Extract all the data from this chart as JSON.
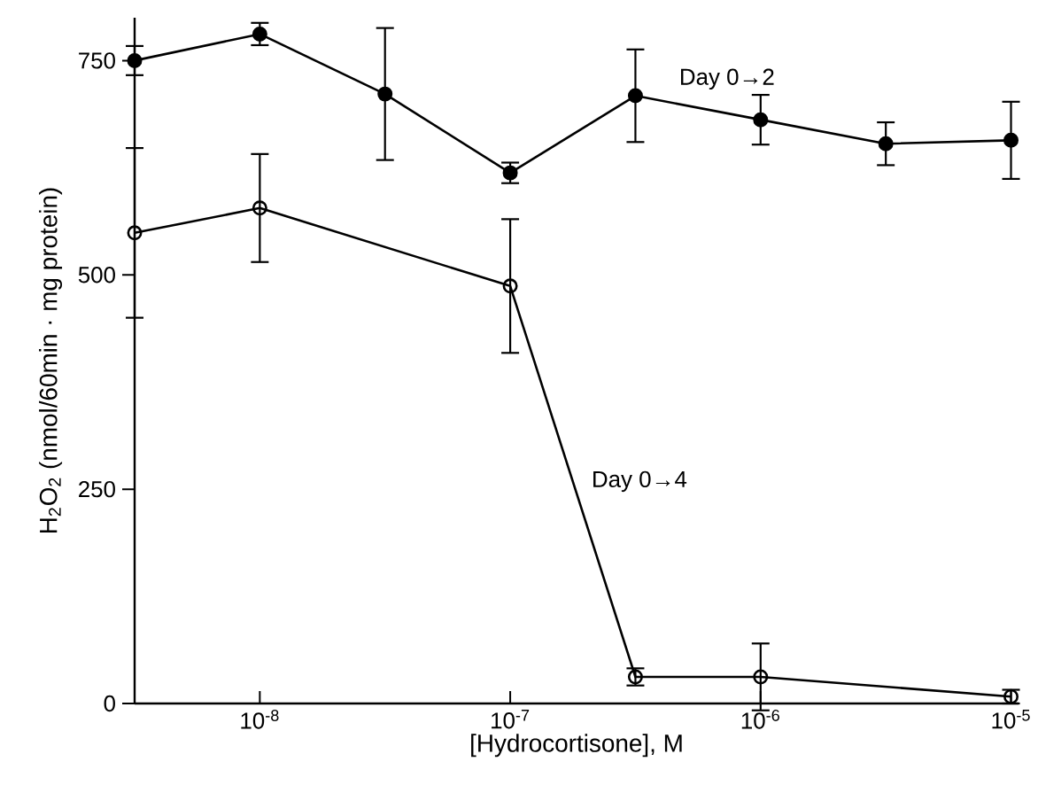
{
  "chart_data": {
    "type": "line",
    "xlabel": "[Hydrocortisone], M",
    "ylabel": "H$_{2}$O$_{2}$ (nmol/60min · mg protein)",
    "categories": [
      null,
      "10$^{-8}$",
      null,
      "10$^{-7}$",
      null,
      "10$^{-6}$",
      null,
      "10$^{-5}$"
    ],
    "ylim": [
      0,
      800
    ],
    "yticks": [
      0,
      250,
      500,
      750
    ],
    "marker": "circle",
    "line_style": "solid",
    "grid": false,
    "legend": false,
    "series": [
      {
        "name": "Day 0→2",
        "color": "#000000",
        "values": [
          750,
          781,
          711,
          619,
          709,
          681,
          653,
          657
        ],
        "errors": [
          17,
          13,
          77,
          12,
          54,
          29,
          25,
          45
        ]
      },
      {
        "name": "Day 0→4",
        "color": "#000000",
        "values": [
          549,
          578,
          null,
          487,
          31,
          31,
          null,
          8
        ],
        "errors": [
          99,
          63,
          null,
          78,
          10,
          39,
          null,
          8
        ]
      }
    ]
  }
}
